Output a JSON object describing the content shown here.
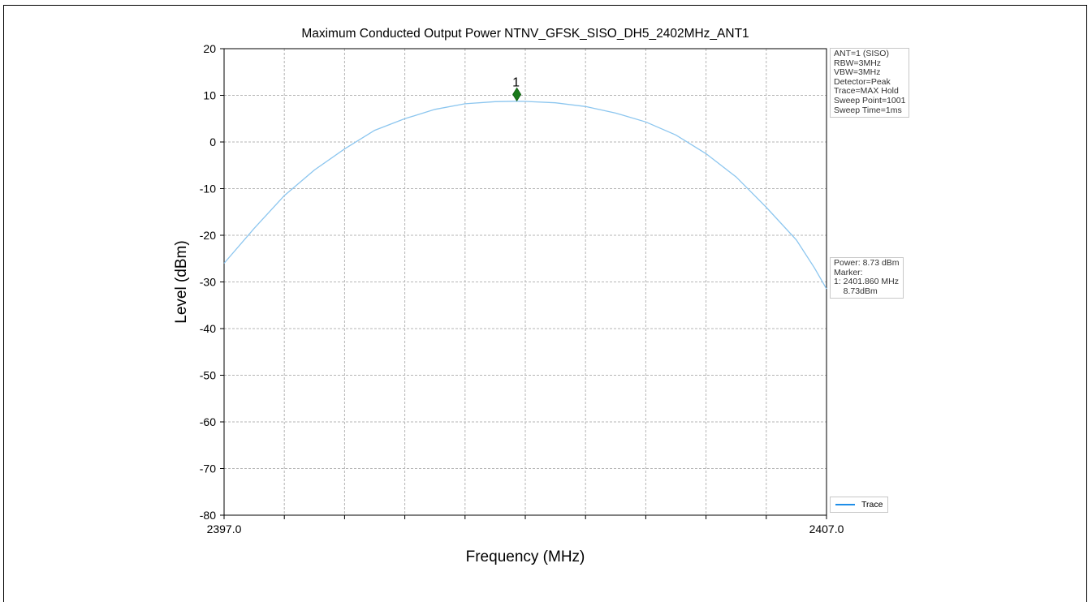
{
  "chart_data": {
    "type": "line",
    "title": "Maximum Conducted Output Power NTNV_GFSK_SISO_DH5_2402MHz_ANT1",
    "xlabel": "Frequency (MHz)",
    "ylabel": "Level (dBm)",
    "xlim": [
      2397.0,
      2407.0
    ],
    "ylim": [
      -80,
      20
    ],
    "x_tick_labels": [
      "2397.0",
      "2407.0"
    ],
    "y_ticks": [
      20,
      10,
      0,
      -10,
      -20,
      -30,
      -40,
      -50,
      -60,
      -70,
      -80
    ],
    "grid": true,
    "legend_position": "bottom-right",
    "series": [
      {
        "name": "Trace",
        "color": "#8cc6ef",
        "x": [
          2397.0,
          2397.5,
          2398.0,
          2398.5,
          2399.0,
          2399.5,
          2400.0,
          2400.5,
          2401.0,
          2401.5,
          2401.86,
          2402.0,
          2402.5,
          2403.0,
          2403.5,
          2404.0,
          2404.5,
          2405.0,
          2405.5,
          2406.0,
          2406.5,
          2406.8,
          2407.0
        ],
        "y": [
          -26.0,
          -18.5,
          -11.5,
          -6.0,
          -1.5,
          2.5,
          5.0,
          7.0,
          8.2,
          8.65,
          8.73,
          8.7,
          8.4,
          7.6,
          6.2,
          4.3,
          1.5,
          -2.5,
          -7.5,
          -14.0,
          -21.0,
          -27.0,
          -31.5
        ]
      }
    ],
    "markers": [
      {
        "label": "1",
        "x": 2401.86,
        "y": 10.2,
        "color": "#1a7a1a"
      }
    ],
    "settings_box": [
      "ANT=1 (SISO)",
      "RBW=3MHz",
      "VBW=3MHz",
      "Detector=Peak",
      "Trace=MAX Hold",
      "Sweep Point=1001",
      "Sweep Time=1ms"
    ],
    "power_box": [
      "Power: 8.73 dBm",
      "Marker:",
      "1: 2401.860 MHz",
      "    8.73dBm"
    ]
  }
}
